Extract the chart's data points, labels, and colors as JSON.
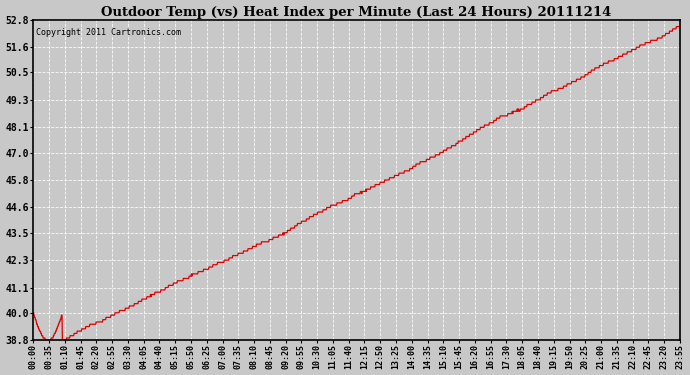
{
  "title": "Outdoor Temp (vs) Heat Index per Minute (Last 24 Hours) 20111214",
  "copyright": "Copyright 2011 Cartronics.com",
  "line_color": "#dd0000",
  "background_color": "#c8c8c8",
  "plot_bg_color": "#c8c8c8",
  "yticks": [
    38.8,
    40.0,
    41.1,
    42.3,
    43.5,
    44.6,
    45.8,
    47.0,
    48.1,
    49.3,
    50.5,
    51.6,
    52.8
  ],
  "ymin": 38.8,
  "ymax": 52.8,
  "xtick_labels": [
    "00:00",
    "00:35",
    "01:10",
    "01:45",
    "02:20",
    "02:55",
    "03:30",
    "04:05",
    "04:40",
    "05:15",
    "05:50",
    "06:25",
    "07:00",
    "07:35",
    "08:10",
    "08:45",
    "09:20",
    "09:55",
    "10:30",
    "11:05",
    "11:40",
    "12:15",
    "12:50",
    "13:25",
    "14:00",
    "14:35",
    "15:10",
    "15:45",
    "16:20",
    "16:55",
    "17:30",
    "18:05",
    "18:40",
    "19:15",
    "19:50",
    "20:25",
    "21:00",
    "21:35",
    "22:10",
    "22:45",
    "23:20",
    "23:55"
  ],
  "num_points": 1440,
  "figwidth": 6.9,
  "figheight": 3.75,
  "dpi": 100
}
